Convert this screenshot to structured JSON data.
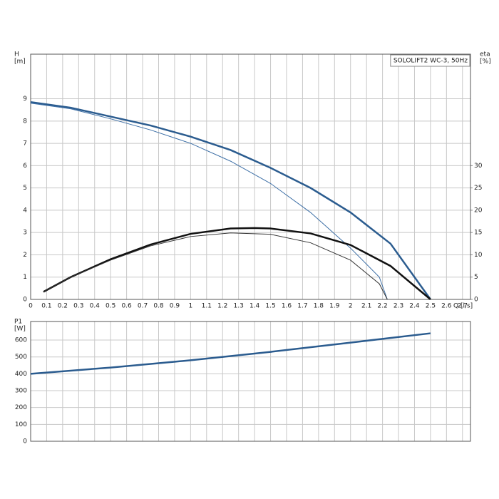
{
  "chart_data": [
    {
      "type": "line",
      "title": "SOLOLIFT2 WC-3, 50Hz",
      "ylabel": [
        "H",
        "[m]"
      ],
      "y2label": [
        "eta",
        "[%]"
      ],
      "xlabel": "Q [l/s]",
      "xlim": [
        0,
        2.75
      ],
      "xticks": [
        0,
        0.1,
        0.2,
        0.3,
        0.4,
        0.5,
        0.6,
        0.7,
        0.8,
        0.9,
        1,
        1.1,
        1.2,
        1.3,
        1.4,
        1.5,
        1.6,
        1.7,
        1.8,
        1.9,
        2,
        2.1,
        2.2,
        2.3,
        2.4,
        2.5,
        2.6,
        2.7
      ],
      "ylim": [
        0,
        11
      ],
      "yticks": [
        0,
        1,
        2,
        3,
        4,
        5,
        6,
        7,
        8,
        9
      ],
      "y2lim": [
        0,
        55
      ],
      "y2ticks": [
        0,
        5,
        10,
        15,
        20,
        25,
        30
      ],
      "grid": true,
      "series": [
        {
          "color": "#2b5c8f",
          "width": 2.5,
          "x": [
            0,
            0.25,
            0.5,
            0.75,
            1.0,
            1.25,
            1.5,
            1.75,
            2.0,
            2.25,
            2.5
          ],
          "values": [
            8.85,
            8.6,
            8.2,
            7.8,
            7.3,
            6.7,
            5.9,
            5.0,
            3.9,
            2.5,
            0
          ]
        },
        {
          "color": "#3d6fa6",
          "width": 1,
          "x": [
            0,
            0.25,
            0.5,
            0.75,
            1.0,
            1.25,
            1.5,
            1.75,
            2.0,
            2.18,
            2.23
          ],
          "values": [
            8.8,
            8.55,
            8.1,
            7.6,
            7.0,
            6.2,
            5.2,
            3.9,
            2.3,
            1.0,
            0
          ]
        },
        {
          "color": "#111111",
          "width": 2.5,
          "axis": "y2",
          "x": [
            0.08,
            0.25,
            0.5,
            0.75,
            1.0,
            1.25,
            1.4,
            1.5,
            1.75,
            2.0,
            2.25,
            2.5
          ],
          "values": [
            1.7,
            5.0,
            9.0,
            12.3,
            14.7,
            15.9,
            16.0,
            15.9,
            14.8,
            12.2,
            7.5,
            0
          ]
        },
        {
          "color": "#333333",
          "width": 1,
          "axis": "y2",
          "x": [
            0.08,
            0.25,
            0.5,
            0.75,
            1.0,
            1.25,
            1.5,
            1.75,
            2.0,
            2.18,
            2.23
          ],
          "values": [
            1.7,
            5.0,
            8.8,
            12.0,
            14.1,
            14.9,
            14.6,
            12.7,
            8.8,
            3.5,
            0
          ]
        }
      ]
    },
    {
      "type": "line",
      "ylabel": [
        "P1",
        "[W]"
      ],
      "xlim": [
        0,
        2.75
      ],
      "xticks": [
        0,
        0.1,
        0.2,
        0.3,
        0.4,
        0.5,
        0.6,
        0.7,
        0.8,
        0.9,
        1,
        1.1,
        1.2,
        1.3,
        1.4,
        1.5,
        1.6,
        1.7,
        1.8,
        1.9,
        2,
        2.1,
        2.2,
        2.3,
        2.4,
        2.5,
        2.6,
        2.7
      ],
      "ylim": [
        0,
        710
      ],
      "yticks": [
        0,
        100,
        200,
        300,
        400,
        500,
        600
      ],
      "grid": true,
      "series": [
        {
          "color": "#2b5c8f",
          "width": 2.5,
          "x": [
            0,
            0.5,
            1.0,
            1.5,
            2.0,
            2.5
          ],
          "values": [
            400,
            437,
            480,
            530,
            585,
            640
          ]
        }
      ]
    }
  ]
}
